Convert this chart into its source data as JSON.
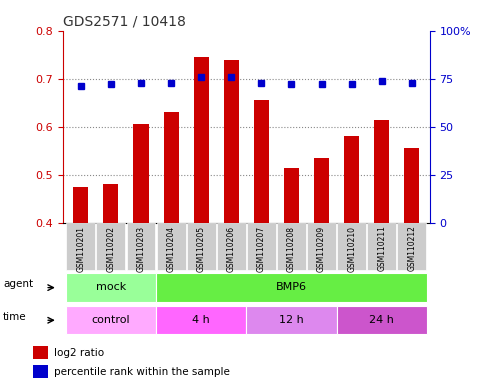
{
  "title": "GDS2571 / 10418",
  "samples": [
    "GSM110201",
    "GSM110202",
    "GSM110203",
    "GSM110204",
    "GSM110205",
    "GSM110206",
    "GSM110207",
    "GSM110208",
    "GSM110209",
    "GSM110210",
    "GSM110211",
    "GSM110212"
  ],
  "log2_ratio": [
    0.475,
    0.48,
    0.605,
    0.63,
    0.745,
    0.74,
    0.655,
    0.515,
    0.535,
    0.58,
    0.613,
    0.555
  ],
  "percentile_pct": [
    71.0,
    72.5,
    73.0,
    73.0,
    76.0,
    75.8,
    73.0,
    72.5,
    72.2,
    72.2,
    73.8,
    73.0
  ],
  "ylim_left": [
    0.4,
    0.8
  ],
  "ylim_right": [
    0,
    100
  ],
  "bar_color": "#cc0000",
  "dot_color": "#0000cc",
  "grid_color": "#888888",
  "title_color": "#333333",
  "left_tick_color": "#cc0000",
  "right_tick_color": "#0000cc",
  "sample_bg_color": "#cccccc",
  "agent_groups": [
    {
      "label": "mock",
      "start": 0,
      "end": 3,
      "color": "#99ff99"
    },
    {
      "label": "BMP6",
      "start": 3,
      "end": 12,
      "color": "#66ee44"
    }
  ],
  "time_groups": [
    {
      "label": "control",
      "start": 0,
      "end": 3,
      "color": "#ffaaff"
    },
    {
      "label": "4 h",
      "start": 3,
      "end": 6,
      "color": "#ff66ff"
    },
    {
      "label": "12 h",
      "start": 6,
      "end": 9,
      "color": "#dd88ee"
    },
    {
      "label": "24 h",
      "start": 9,
      "end": 12,
      "color": "#cc55cc"
    }
  ],
  "legend_red_label": "log2 ratio",
  "legend_blue_label": "percentile rank within the sample"
}
